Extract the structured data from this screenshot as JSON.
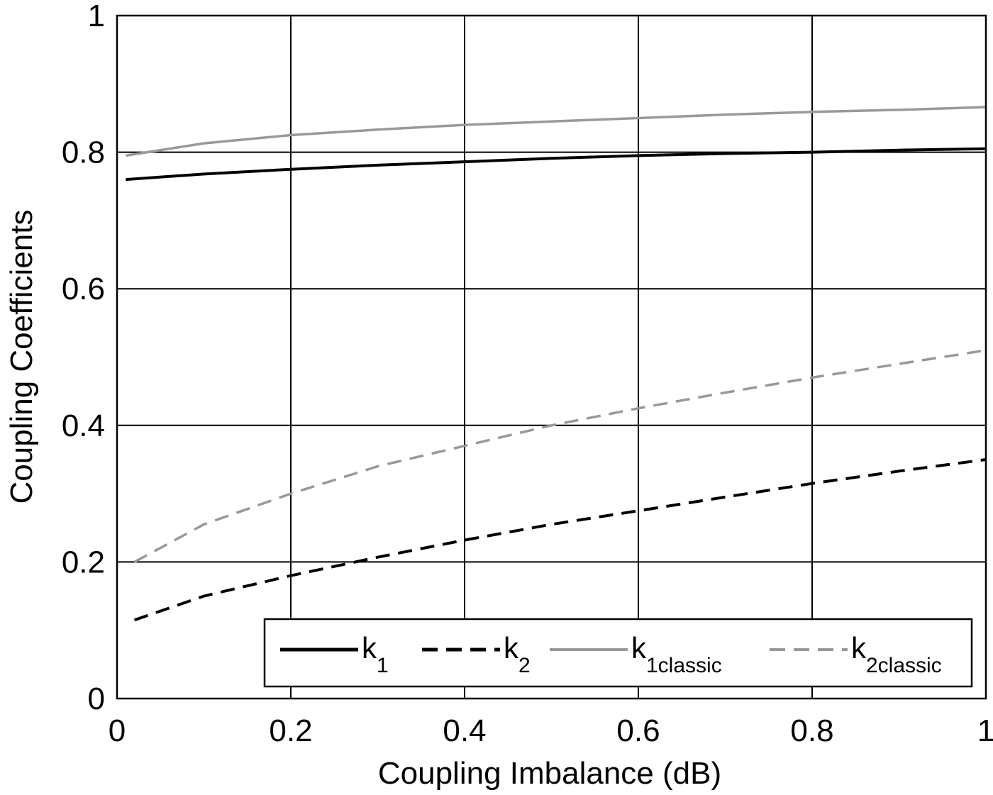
{
  "chart_data": {
    "type": "line",
    "title": "",
    "xlabel": "Coupling Imbalance (dB)",
    "ylabel": "Coupling Coefficients",
    "xlim": [
      0,
      1
    ],
    "ylim": [
      0,
      1
    ],
    "xticks": [
      "0",
      "0.2",
      "0.4",
      "0.6",
      "0.8",
      "1"
    ],
    "yticks": [
      "0",
      "0.2",
      "0.4",
      "0.6",
      "0.8",
      "1"
    ],
    "xtick_values": [
      0,
      0.2,
      0.4,
      0.6,
      0.8,
      1
    ],
    "ytick_values": [
      0,
      0.2,
      0.4,
      0.6,
      0.8,
      1
    ],
    "grid": true,
    "legend_placement": "bottom-right",
    "series": [
      {
        "name": "k1",
        "label": "k",
        "sub": "1",
        "color": "#000000",
        "dash": false,
        "x": [
          0.01,
          0.1,
          0.2,
          0.3,
          0.4,
          0.5,
          0.6,
          0.7,
          0.8,
          0.9,
          1.0
        ],
        "y": [
          0.76,
          0.768,
          0.775,
          0.781,
          0.786,
          0.791,
          0.795,
          0.798,
          0.8,
          0.803,
          0.805
        ]
      },
      {
        "name": "k2",
        "label": "k",
        "sub": "2",
        "color": "#000000",
        "dash": true,
        "x": [
          0.02,
          0.1,
          0.2,
          0.3,
          0.4,
          0.5,
          0.6,
          0.7,
          0.8,
          0.9,
          1.0
        ],
        "y": [
          0.115,
          0.15,
          0.18,
          0.207,
          0.232,
          0.255,
          0.275,
          0.295,
          0.315,
          0.333,
          0.35
        ]
      },
      {
        "name": "k1classic",
        "label": "k",
        "sub": "1classic",
        "color": "#999999",
        "dash": false,
        "x": [
          0.01,
          0.1,
          0.2,
          0.3,
          0.4,
          0.5,
          0.6,
          0.7,
          0.8,
          0.9,
          1.0
        ],
        "y": [
          0.795,
          0.813,
          0.825,
          0.833,
          0.84,
          0.845,
          0.85,
          0.855,
          0.859,
          0.862,
          0.866
        ]
      },
      {
        "name": "k2classic",
        "label": "k",
        "sub": "2classic",
        "color": "#999999",
        "dash": true,
        "x": [
          0.02,
          0.1,
          0.2,
          0.3,
          0.4,
          0.5,
          0.6,
          0.7,
          0.8,
          0.9,
          1.0
        ],
        "y": [
          0.2,
          0.255,
          0.3,
          0.34,
          0.37,
          0.4,
          0.425,
          0.448,
          0.47,
          0.49,
          0.51
        ]
      }
    ]
  }
}
